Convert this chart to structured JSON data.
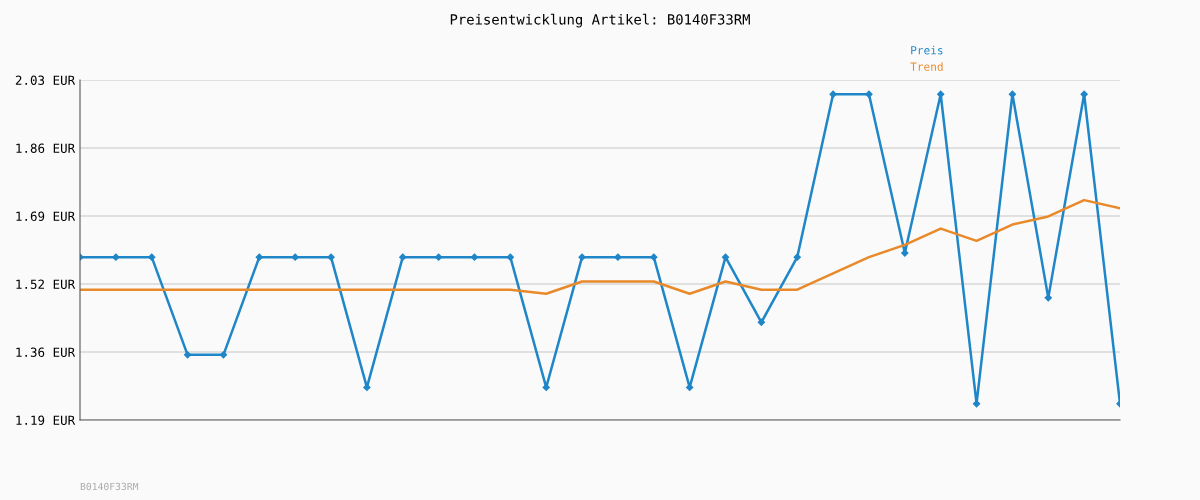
{
  "chart_data": {
    "type": "line",
    "title": "Preisentwicklung Artikel: B0140F33RM",
    "categories": [
      null,
      null,
      null,
      null,
      null,
      null,
      null,
      null,
      null,
      null,
      null,
      null,
      null,
      null,
      null,
      null,
      null,
      null,
      null,
      null,
      null,
      null,
      null,
      null,
      null,
      null,
      null,
      null,
      null,
      null
    ],
    "series": [
      {
        "name": "Preis",
        "color": "#1f86c8",
        "marker": "diamond",
        "values": [
          1.59,
          1.59,
          1.59,
          1.35,
          1.35,
          1.59,
          1.59,
          1.59,
          1.27,
          1.59,
          1.59,
          1.59,
          1.59,
          1.27,
          1.59,
          1.59,
          1.59,
          1.27,
          1.59,
          1.43,
          1.59,
          1.99,
          1.99,
          1.6,
          1.99,
          1.23,
          1.99,
          1.49,
          1.99,
          1.23
        ]
      },
      {
        "name": "Trend",
        "color": "#e8892a",
        "marker": "none",
        "values": [
          1.51,
          1.51,
          1.51,
          1.51,
          1.51,
          1.51,
          1.51,
          1.51,
          1.51,
          1.51,
          1.51,
          1.51,
          1.51,
          1.5,
          1.53,
          1.53,
          1.53,
          1.5,
          1.53,
          1.51,
          1.51,
          1.55,
          1.59,
          1.62,
          1.66,
          1.63,
          1.67,
          1.69,
          1.73,
          1.71
        ]
      }
    ],
    "ylim": [
      1.19,
      2.025
    ],
    "yticks": [
      {
        "value": 1.19,
        "label": "1.19 EUR"
      },
      {
        "value": 1.357,
        "label": "1.36 EUR"
      },
      {
        "value": 1.524,
        "label": "1.52 EUR"
      },
      {
        "value": 1.691,
        "label": "1.69 EUR"
      },
      {
        "value": 1.858,
        "label": "1.86 EUR"
      },
      {
        "value": 2.025,
        "label": "2.03 EUR"
      }
    ],
    "grid": "y",
    "legend": "top right",
    "line_style": "solid",
    "annotations": [
      "B0140F33RM"
    ]
  }
}
